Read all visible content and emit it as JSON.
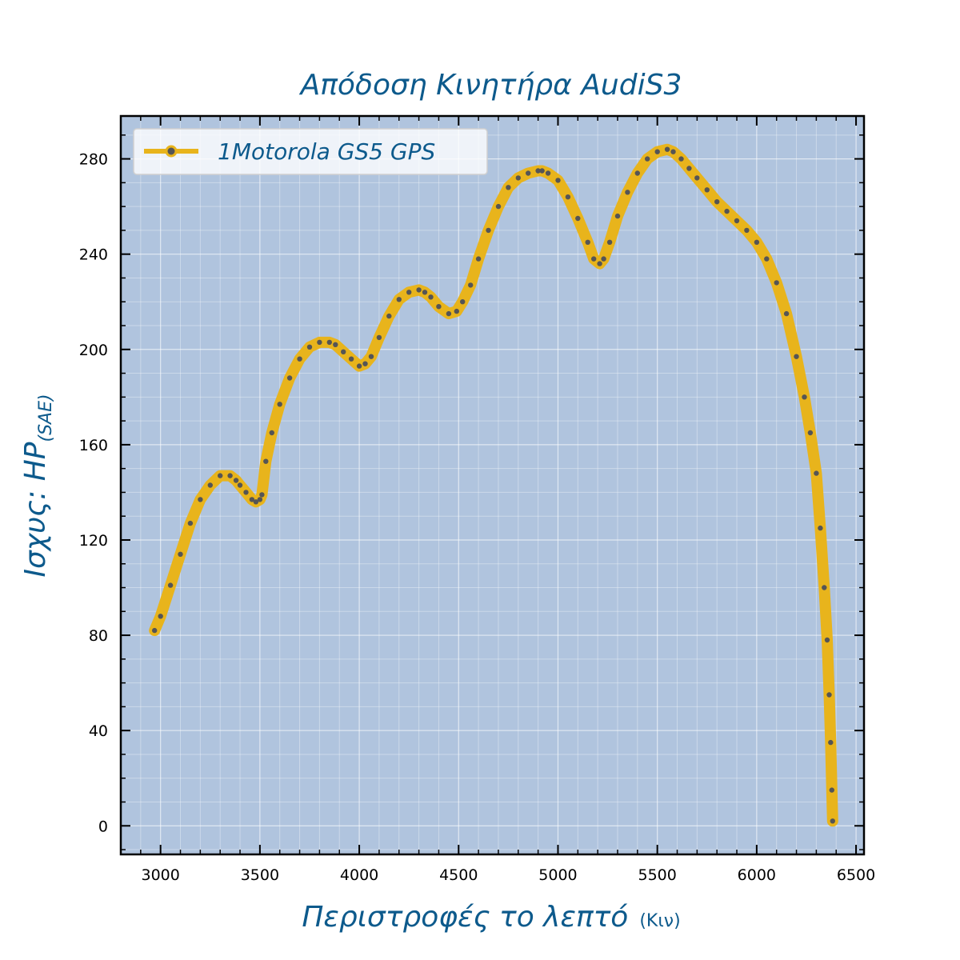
{
  "chart_data": {
    "type": "line",
    "title": "Απόδοση Κινητήρα AudiS3",
    "xlabel": "Περιστροφές το λεπτό",
    "xlabel_unit": "(Κιν)",
    "ylabel": "Ισχυς: HP",
    "ylabel_sub": "(SAE)",
    "xlim": [
      2800,
      6540
    ],
    "ylim": [
      -12,
      298
    ],
    "x_ticks": [
      3000,
      3500,
      4000,
      4500,
      5000,
      5500,
      6000,
      6500
    ],
    "y_ticks": [
      0,
      40,
      80,
      120,
      160,
      200,
      240,
      280
    ],
    "grid": true,
    "legend_position": "top-left",
    "colors": {
      "plot_background": "#b0c4de",
      "line": "#e8b41c",
      "marker": "#555555",
      "text": "#0d5a8c"
    },
    "series": [
      {
        "name": "1Motorola GS5 GPS",
        "x": [
          2970,
          3000,
          3050,
          3100,
          3150,
          3200,
          3250,
          3300,
          3350,
          3380,
          3400,
          3430,
          3460,
          3480,
          3500,
          3510,
          3530,
          3560,
          3600,
          3650,
          3700,
          3750,
          3800,
          3850,
          3880,
          3920,
          3960,
          4000,
          4030,
          4060,
          4100,
          4150,
          4200,
          4250,
          4300,
          4330,
          4360,
          4400,
          4450,
          4490,
          4520,
          4560,
          4600,
          4650,
          4700,
          4750,
          4800,
          4850,
          4900,
          4920,
          4950,
          5000,
          5050,
          5100,
          5150,
          5180,
          5210,
          5230,
          5260,
          5300,
          5350,
          5400,
          5450,
          5500,
          5550,
          5580,
          5620,
          5660,
          5700,
          5750,
          5800,
          5850,
          5900,
          5950,
          6000,
          6050,
          6100,
          6150,
          6200,
          6240,
          6270,
          6300,
          6320,
          6340,
          6355,
          6365,
          6372,
          6378,
          6382
        ],
        "y": [
          82,
          88,
          101,
          114,
          127,
          137,
          143,
          147,
          147,
          145,
          143,
          140,
          137,
          136,
          137,
          139,
          153,
          165,
          177,
          188,
          196,
          201,
          203,
          203,
          202,
          199,
          196,
          193,
          194,
          197,
          205,
          214,
          221,
          224,
          225,
          224,
          222,
          218,
          215,
          216,
          220,
          227,
          238,
          250,
          260,
          268,
          272,
          274,
          275,
          275,
          274,
          271,
          264,
          255,
          245,
          238,
          236,
          238,
          245,
          256,
          266,
          274,
          280,
          283,
          284,
          283,
          280,
          276,
          272,
          267,
          262,
          258,
          254,
          250,
          245,
          238,
          228,
          215,
          197,
          180,
          165,
          148,
          125,
          100,
          78,
          55,
          35,
          15,
          2
        ]
      }
    ]
  }
}
